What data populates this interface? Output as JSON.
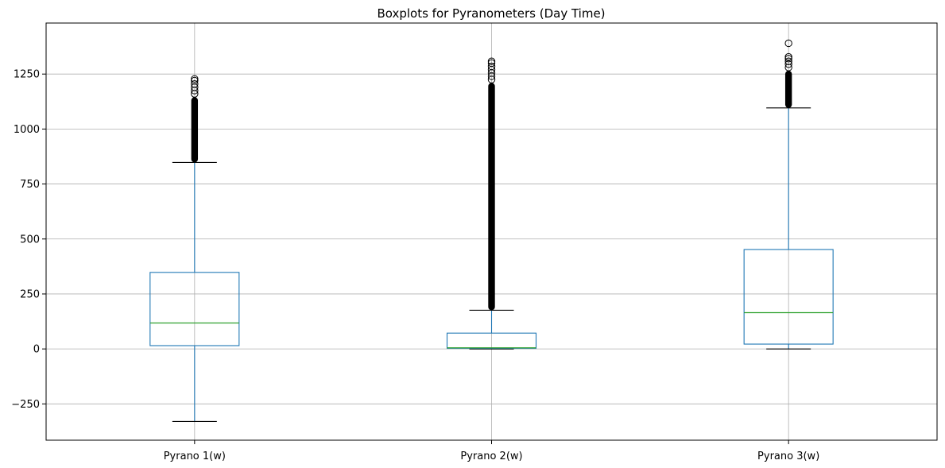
{
  "chart_data": {
    "type": "box",
    "title": "Boxplots for Pyranometers (Day Time)",
    "xlabel": "",
    "ylabel": "",
    "ylim": [
      -415,
      1482
    ],
    "yticks": [
      -250,
      0,
      250,
      500,
      750,
      1000,
      1250
    ],
    "ytick_labels": [
      "−250",
      "0",
      "250",
      "500",
      "750",
      "1000",
      "1250"
    ],
    "grid": true,
    "colors": {
      "box": "#1f77b4",
      "median": "#2ca02c",
      "whisker": "#1f77b4",
      "cap": "#000000",
      "flier": "#000000",
      "grid": "#b0b0b0"
    },
    "categories": [
      "Pyrano 1(w)",
      "Pyrano 2(w)",
      "Pyrano 3(w)"
    ],
    "boxes": [
      {
        "name": "Pyrano 1(w)",
        "whislo": -330,
        "q1": 15,
        "median": 118,
        "q3": 348,
        "whishi": 848,
        "fliers_dense": [
          848,
          1145
        ],
        "fliers": [
          1160,
          1175,
          1190,
          1205,
          1220,
          1228
        ]
      },
      {
        "name": "Pyrano 2(w)",
        "whislo": 0,
        "q1": 3,
        "median": 5,
        "q3": 72,
        "whishi": 176,
        "fliers_dense": [
          176,
          1210
        ],
        "fliers": [
          1225,
          1240,
          1255,
          1270,
          1285,
          1300,
          1308
        ]
      },
      {
        "name": "Pyrano 3(w)",
        "whislo": 0,
        "q1": 22,
        "median": 165,
        "q3": 452,
        "whishi": 1096,
        "fliers_dense": [
          1096,
          1265
        ],
        "fliers": [
          1280,
          1295,
          1308,
          1320,
          1328,
          1390
        ]
      }
    ]
  }
}
